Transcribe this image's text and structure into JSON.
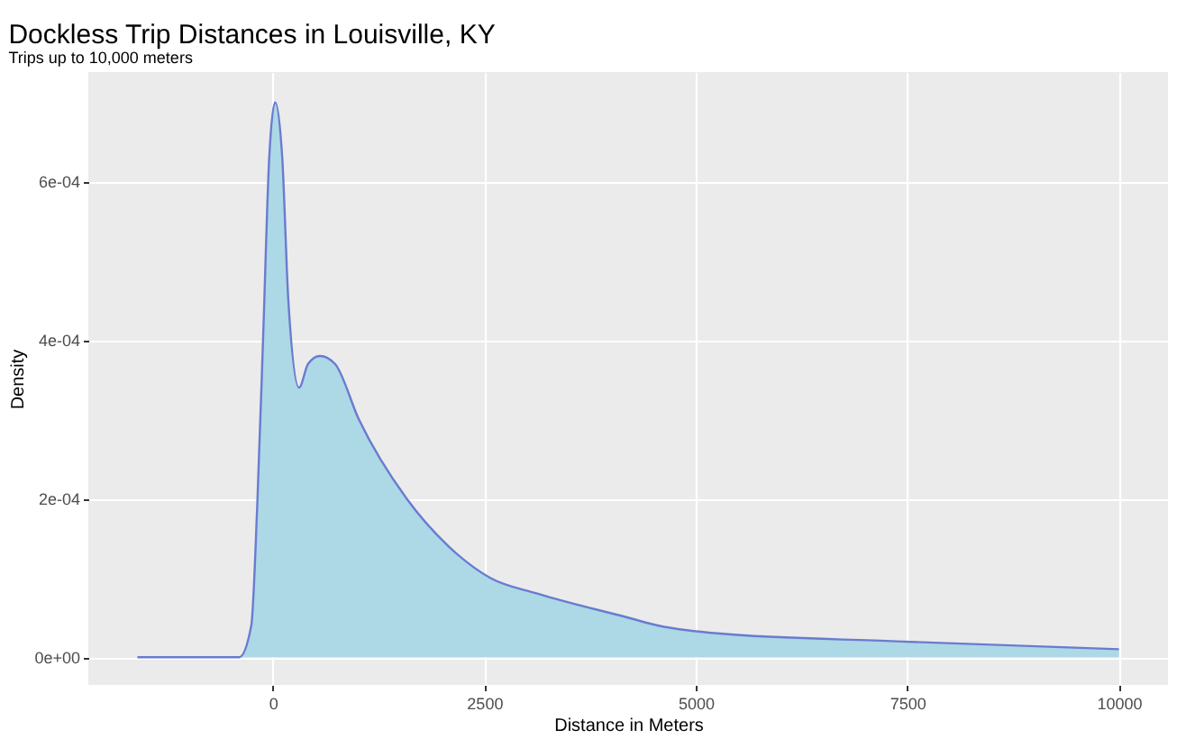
{
  "chart_data": {
    "type": "area",
    "title": "Dockless Trip Distances in Louisville, KY",
    "subtitle": "Trips up to 10,000 meters",
    "xlabel": "Distance in Meters",
    "ylabel": "Density",
    "x": [
      -1600,
      -900,
      -396,
      -254,
      -184,
      -112,
      -42,
      28,
      112,
      184,
      311,
      417,
      557,
      735,
      1017,
      1582,
      2076,
      2570,
      3136,
      4195,
      4548,
      5254,
      7373,
      10000
    ],
    "series": [
      {
        "color": "#add8e6",
        "values": [
          0,
          0,
          0,
          4e-05,
          0.00019,
          0.00041,
          0.00063,
          0.0007,
          0.00063,
          0.00045,
          0.00034,
          0.00037,
          0.00038,
          0.00037,
          0.0003,
          0.0002,
          0.00014,
          0.0001,
          8e-05,
          5e-05,
          4e-05,
          3e-05,
          2e-05,
          1e-05
        ]
      }
    ],
    "xlim": [
      -2180,
      10580
    ],
    "xticks": [
      0,
      2500,
      5000,
      7500,
      10000
    ],
    "ylim": [
      -3.5e-05,
      0.000738
    ],
    "yticks": [
      {
        "value": 0,
        "label": "0e+00"
      },
      {
        "value": 0.0002,
        "label": "2e-04"
      },
      {
        "value": 0.0004,
        "label": "4e-04"
      },
      {
        "value": 0.0006,
        "label": "6e-04"
      }
    ],
    "grid": true
  }
}
